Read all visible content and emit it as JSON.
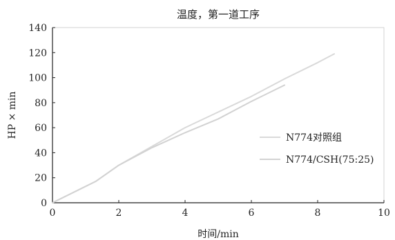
{
  "chart_data": {
    "type": "line",
    "title": "温度，第一道工序",
    "xlabel": "时间/min",
    "ylabel": "HP × min",
    "xlim": [
      0,
      10
    ],
    "ylim": [
      0,
      140
    ],
    "xticks": [
      0,
      2,
      4,
      6,
      8,
      10
    ],
    "yticks": [
      0,
      20,
      40,
      60,
      80,
      100,
      120,
      140
    ],
    "grid": false,
    "legend_position": "right",
    "series": [
      {
        "name": "N774对照组",
        "color": "#d9d9d9",
        "x": [
          0,
          1.3,
          2.0,
          3.0,
          4.0,
          4.8,
          6.0,
          7.0,
          8.0,
          8.5
        ],
        "y": [
          0,
          17,
          30,
          45,
          60,
          70,
          85,
          99,
          112,
          119
        ]
      },
      {
        "name": "N774/CSH(75:25)",
        "color": "#d2d2d2",
        "x": [
          0,
          1.3,
          2.0,
          3.0,
          3.5,
          4.0,
          5.0,
          6.0,
          7.0
        ],
        "y": [
          0,
          17,
          30,
          44,
          50,
          56,
          67,
          81,
          94
        ]
      }
    ]
  }
}
